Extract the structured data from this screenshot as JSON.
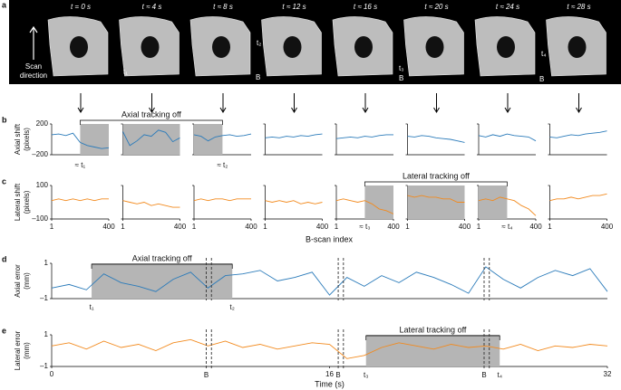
{
  "images": {
    "panel_label": "a",
    "times": [
      "t = 0 s",
      "t ≈ 4 s",
      "t ≈ 8 s",
      "t ≈ 12 s",
      "t ≈ 16 s",
      "t ≈ 20 s",
      "t ≈ 24 s",
      "t ≈ 28 s"
    ],
    "scan_label": [
      "Scan",
      "direction"
    ],
    "callouts": [
      "t₁",
      "t₂",
      "B",
      "t₃",
      "B",
      "t₄",
      "B"
    ]
  },
  "chart_data": [
    {
      "type": "line",
      "panel_label": "b",
      "ylabel": [
        "Axial shift",
        "(pixels)"
      ],
      "color": "#2b7bba",
      "x": [
        1,
        50,
        100,
        150,
        200,
        250,
        300,
        350,
        400
      ],
      "xlim": [
        1,
        400
      ],
      "ylim": [
        -200,
        200
      ],
      "yticks": [
        {
          "value": -200,
          "label": "–200"
        },
        200
      ],
      "bracket": "Axial tracking off",
      "panels": [
        {
          "values": [
            60,
            70,
            50,
            80,
            -40,
            -80,
            -100,
            -120,
            -110
          ],
          "shade": [
            200,
            400
          ],
          "note": "≈ t₁"
        },
        {
          "values": [
            100,
            -80,
            -20,
            60,
            40,
            120,
            90,
            -30,
            20
          ],
          "shade": [
            1,
            400
          ]
        },
        {
          "values": [
            60,
            40,
            -20,
            30,
            50,
            60,
            40,
            50,
            70
          ],
          "shade": [
            1,
            200
          ],
          "note": "≈ t₂"
        },
        {
          "values": [
            20,
            30,
            20,
            40,
            30,
            50,
            40,
            60,
            70
          ]
        },
        {
          "values": [
            10,
            20,
            30,
            20,
            40,
            30,
            50,
            60,
            60
          ]
        },
        {
          "values": [
            40,
            30,
            50,
            40,
            20,
            10,
            0,
            -20,
            -40
          ]
        },
        {
          "values": [
            50,
            30,
            60,
            40,
            70,
            50,
            40,
            30,
            -20
          ]
        },
        {
          "values": [
            30,
            20,
            40,
            60,
            50,
            70,
            80,
            90,
            110
          ]
        }
      ]
    },
    {
      "type": "line",
      "panel_label": "c",
      "ylabel": [
        "Lateral shift",
        "(pixels)"
      ],
      "color": "#f28a1e",
      "x": [
        1,
        50,
        100,
        150,
        200,
        250,
        300,
        350,
        400
      ],
      "xlim": [
        1,
        400
      ],
      "xticks": [
        1,
        400
      ],
      "xlabel": "B-scan index",
      "ylim": [
        -100,
        100
      ],
      "yticks": [
        {
          "value": -100,
          "label": "–100"
        },
        100
      ],
      "bracket": "Lateral tracking off",
      "panels": [
        {
          "values": [
            10,
            20,
            10,
            20,
            10,
            20,
            10,
            20,
            20
          ]
        },
        {
          "values": [
            10,
            0,
            -10,
            0,
            -20,
            -10,
            -20,
            -30,
            -30
          ]
        },
        {
          "values": [
            10,
            20,
            10,
            20,
            20,
            10,
            20,
            20,
            20
          ]
        },
        {
          "values": [
            10,
            0,
            10,
            0,
            10,
            -10,
            0,
            -10,
            0
          ]
        },
        {
          "values": [
            10,
            20,
            10,
            0,
            10,
            -10,
            -40,
            -50,
            -70
          ],
          "shade": [
            200,
            400
          ],
          "note": "≈ t₃"
        },
        {
          "values": [
            40,
            30,
            40,
            30,
            30,
            20,
            20,
            0,
            0
          ],
          "shade": [
            1,
            400
          ]
        },
        {
          "values": [
            10,
            20,
            10,
            30,
            20,
            10,
            -20,
            -40,
            -80
          ],
          "shade": [
            1,
            200
          ],
          "note": "≈ t₄"
        },
        {
          "values": [
            10,
            20,
            20,
            30,
            20,
            30,
            40,
            40,
            50
          ]
        }
      ]
    },
    {
      "type": "line",
      "panel_label": "d",
      "ylabel": [
        "Axial error",
        "(mm)"
      ],
      "color": "#2b7bba",
      "x": [
        0,
        1,
        2,
        3,
        4,
        5,
        6,
        7,
        8,
        9,
        10,
        11,
        12,
        13,
        14,
        15,
        16,
        17,
        18,
        19,
        20,
        21,
        22,
        23,
        24,
        25,
        26,
        27,
        28,
        29,
        30,
        31,
        32
      ],
      "values": [
        -0.4,
        -0.2,
        -0.5,
        0.4,
        -0.1,
        -0.3,
        -0.6,
        0.1,
        0.5,
        -0.4,
        0.3,
        0.4,
        0.6,
        0.0,
        0.2,
        0.5,
        -0.8,
        0.2,
        -0.3,
        0.3,
        -0.1,
        0.5,
        0.2,
        -0.2,
        -0.7,
        0.8,
        0.1,
        -0.4,
        0.2,
        0.6,
        0.3,
        0.7,
        -0.6
      ],
      "xlim": [
        0,
        32
      ],
      "ylim": [
        -1,
        1
      ],
      "yticks": [
        {
          "value": -1,
          "label": "–1"
        },
        1
      ],
      "shade": [
        2.3,
        10.4
      ],
      "bracket": "Axial tracking off",
      "shade_labels": [
        "t₁",
        "t₂"
      ],
      "events": [
        {
          "x": [
            8.9,
            9.2
          ]
        },
        {
          "x": [
            16.5,
            16.8
          ]
        },
        {
          "x": [
            24.9,
            25.2
          ]
        }
      ]
    },
    {
      "type": "line",
      "panel_label": "e",
      "ylabel": [
        "Lateral error",
        "(mm)"
      ],
      "color": "#f28a1e",
      "x": [
        0,
        1,
        2,
        3,
        4,
        5,
        6,
        7,
        8,
        9,
        10,
        11,
        12,
        13,
        14,
        15,
        16,
        17,
        18,
        19,
        20,
        21,
        22,
        23,
        24,
        25,
        26,
        27,
        28,
        29,
        30,
        31,
        32
      ],
      "values": [
        0.3,
        0.5,
        0.1,
        0.6,
        0.2,
        0.4,
        0.0,
        0.5,
        0.7,
        0.3,
        0.6,
        0.2,
        0.4,
        0.1,
        0.3,
        0.5,
        0.4,
        -0.5,
        -0.3,
        0.2,
        0.5,
        0.3,
        0.1,
        0.4,
        0.2,
        0.3,
        0.1,
        0.4,
        0.0,
        0.3,
        0.2,
        0.4,
        0.3
      ],
      "xlim": [
        0,
        32
      ],
      "xticks": [
        0,
        16,
        32
      ],
      "xlabel": "Time (s)",
      "ylim": [
        -1,
        1
      ],
      "yticks": [
        {
          "value": -1,
          "label": "–1"
        },
        1
      ],
      "shade": [
        18.1,
        25.8
      ],
      "bracket": "Lateral tracking off",
      "shade_labels": [
        "t₃",
        "t₄"
      ],
      "events": [
        {
          "x": [
            8.9,
            9.2
          ],
          "label": "B"
        },
        {
          "x": [
            16.5,
            16.8
          ],
          "label": "B"
        },
        {
          "x": [
            24.9,
            25.2
          ],
          "label": "B"
        }
      ]
    }
  ]
}
